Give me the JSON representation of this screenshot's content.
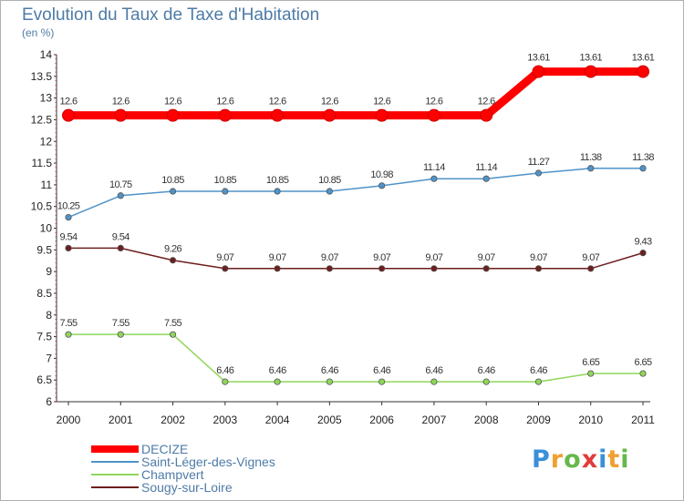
{
  "header": {
    "title": "Evolution du Taux de Taxe d'Habitation",
    "subtitle": "(en %)"
  },
  "chart_data": {
    "type": "line",
    "title": "Evolution du Taux de Taxe d'Habitation",
    "ylabel": "(en %)",
    "xlabel": "",
    "x": [
      "2000",
      "2001",
      "2002",
      "2003",
      "2004",
      "2005",
      "2006",
      "2007",
      "2008",
      "2009",
      "2010",
      "2011"
    ],
    "ylim": [
      6,
      14
    ],
    "yticks": [
      "6",
      "6.5",
      "7",
      "7.5",
      "8",
      "8.5",
      "9",
      "9.5",
      "10",
      "10.5",
      "11",
      "11.5",
      "12",
      "12.5",
      "13",
      "13.5",
      "14"
    ],
    "grid": false,
    "legend_position": "bottom-left",
    "series": [
      {
        "name": "DECIZE",
        "color": "#ff0000",
        "values": [
          12.6,
          12.6,
          12.6,
          12.6,
          12.6,
          12.6,
          12.6,
          12.6,
          12.6,
          13.61,
          13.61,
          13.61
        ],
        "labels": [
          "12.6",
          "12.6",
          "12.6",
          "12.6",
          "12.6",
          "12.6",
          "12.6",
          "12.6",
          "12.6",
          "13.61",
          "13.61",
          "13.61"
        ]
      },
      {
        "name": "Saint-Léger-des-Vignes",
        "color": "#4f93c9",
        "values": [
          10.25,
          10.75,
          10.85,
          10.85,
          10.85,
          10.85,
          10.98,
          11.14,
          11.14,
          11.27,
          11.38,
          11.38
        ],
        "labels": [
          "10.25",
          "10.75",
          "10.85",
          "10.85",
          "10.85",
          "10.85",
          "10.98",
          "11.14",
          "11.14",
          "11.27",
          "11.38",
          "11.38"
        ]
      },
      {
        "name": "Champvert",
        "color": "#8fd65b",
        "values": [
          7.55,
          7.55,
          7.55,
          6.46,
          6.46,
          6.46,
          6.46,
          6.46,
          6.46,
          6.46,
          6.65,
          6.65
        ],
        "labels": [
          "7.55",
          "7.55",
          "7.55",
          "6.46",
          "6.46",
          "6.46",
          "6.46",
          "6.46",
          "6.46",
          "6.46",
          "6.65",
          "6.65"
        ]
      },
      {
        "name": "Sougy-sur-Loire",
        "color": "#6e1e1e",
        "values": [
          9.54,
          9.54,
          9.26,
          9.07,
          9.07,
          9.07,
          9.07,
          9.07,
          9.07,
          9.07,
          9.07,
          9.43
        ],
        "labels": [
          "9.54",
          "9.54",
          "9.26",
          "9.07",
          "9.07",
          "9.07",
          "9.07",
          "9.07",
          "9.07",
          "9.07",
          "9.07",
          "9.43"
        ]
      }
    ]
  },
  "legend": {
    "items": [
      {
        "label": "DECIZE",
        "color": "#ff0000"
      },
      {
        "label": "Saint-Léger-des-Vignes",
        "color": "#4f93c9"
      },
      {
        "label": "Champvert",
        "color": "#8fd65b"
      },
      {
        "label": "Sougy-sur-Loire",
        "color": "#6e1e1e"
      }
    ]
  },
  "logo": {
    "letters": [
      "P",
      "r",
      "o",
      "x",
      "i",
      "t",
      "i"
    ],
    "colors": [
      "#3a8fd8",
      "#f0a030",
      "#66b84a",
      "#e23b3b",
      "#3a8fd8",
      "#f0a030",
      "#66b84a"
    ]
  }
}
